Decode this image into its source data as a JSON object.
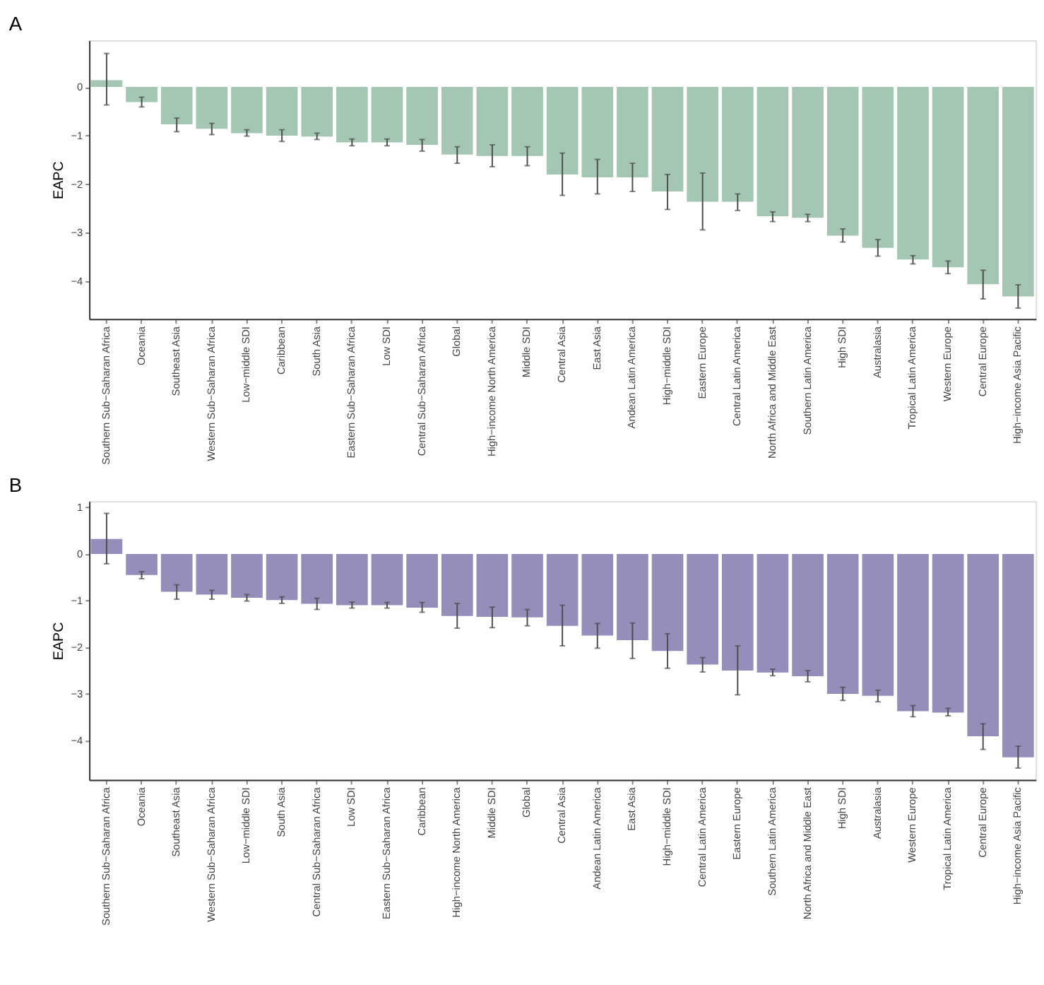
{
  "chart_data": [
    {
      "type": "bar",
      "title": "A",
      "ylabel": "EAPC",
      "categories": [
        "Southern Sub−Saharan Africa",
        "Oceania",
        "Southeast Asia",
        "Western Sub−Saharan Africa",
        "Low−middle SDI",
        "Caribbean",
        "South Asia",
        "Eastern Sub−Saharan Africa",
        "Low SDI",
        "Central Sub−Saharan Africa",
        "Global",
        "High−income North America",
        "Middle SDI",
        "Central Asia",
        "East Asia",
        "Andean Latin America",
        "High−middle SDI",
        "Eastern Europe",
        "Central Latin America",
        "North Africa and Middle East",
        "Southern Latin America",
        "High SDI",
        "Australasia",
        "Tropical Latin America",
        "Western Europe",
        "Central Europe",
        "High−income Asia Pacific"
      ],
      "values": [
        0.14,
        -0.31,
        -0.77,
        -0.86,
        -0.95,
        -1.0,
        -1.02,
        -1.14,
        -1.14,
        -1.19,
        -1.39,
        -1.42,
        -1.42,
        -1.8,
        -1.86,
        -1.86,
        -2.15,
        -2.36,
        -2.36,
        -2.66,
        -2.69,
        -3.06,
        -3.31,
        -3.55,
        -3.71,
        -4.06,
        -4.31
      ],
      "errors": [
        [
          -0.37,
          0.69
        ],
        [
          -0.41,
          -0.21
        ],
        [
          -0.92,
          -0.64
        ],
        [
          -0.98,
          -0.75
        ],
        [
          -1.01,
          -0.88
        ],
        [
          -1.12,
          -0.88
        ],
        [
          -1.08,
          -0.95
        ],
        [
          -1.21,
          -1.07
        ],
        [
          -1.21,
          -1.07
        ],
        [
          -1.32,
          -1.08
        ],
        [
          -1.57,
          -1.23
        ],
        [
          -1.64,
          -1.19
        ],
        [
          -1.62,
          -1.23
        ],
        [
          -2.23,
          -1.36
        ],
        [
          -2.2,
          -1.49
        ],
        [
          -2.15,
          -1.57
        ],
        [
          -2.52,
          -1.8
        ],
        [
          -2.94,
          -1.77
        ],
        [
          -2.54,
          -2.2
        ],
        [
          -2.77,
          -2.57
        ],
        [
          -2.77,
          -2.62
        ],
        [
          -3.19,
          -2.92
        ],
        [
          -3.48,
          -3.14
        ],
        [
          -3.64,
          -3.47
        ],
        [
          -3.84,
          -3.58
        ],
        [
          -4.36,
          -3.77
        ],
        [
          -4.55,
          -4.07
        ]
      ],
      "color": "#a4c7b3",
      "ylim": [
        -4.77,
        0.96
      ],
      "yticks": [
        -4,
        -3,
        -2,
        -1,
        0
      ],
      "grid": false
    },
    {
      "type": "bar",
      "title": "B",
      "ylabel": "EAPC",
      "categories": [
        "Southern Sub−Saharan Africa",
        "Oceania",
        "Southeast Asia",
        "Western Sub−Saharan Africa",
        "Low−middle SDI",
        "South Asia",
        "Central Sub−Saharan Africa",
        "Low SDI",
        "Eastern Sub−Saharan Africa",
        "Caribbean",
        "High−income North America",
        "Middle SDI",
        "Global",
        "Central Asia",
        "Andean Latin America",
        "East Asia",
        "High−middle SDI",
        "Central Latin America",
        "Eastern Europe",
        "Southern Latin America",
        "North Africa and Middle East",
        "High SDI",
        "Australasia",
        "Western Europe",
        "Tropical Latin America",
        "Central Europe",
        "High−income Asia Pacific"
      ],
      "values": [
        0.32,
        -0.45,
        -0.81,
        -0.87,
        -0.94,
        -0.99,
        -1.07,
        -1.1,
        -1.1,
        -1.15,
        -1.33,
        -1.35,
        -1.36,
        -1.54,
        -1.75,
        -1.85,
        -2.08,
        -2.37,
        -2.5,
        -2.54,
        -2.62,
        -3.0,
        -3.04,
        -3.37,
        -3.4,
        -3.91,
        -4.36
      ],
      "errors": [
        [
          -0.21,
          0.87
        ],
        [
          -0.53,
          -0.38
        ],
        [
          -0.97,
          -0.66
        ],
        [
          -0.97,
          -0.78
        ],
        [
          -1.01,
          -0.87
        ],
        [
          -1.06,
          -0.92
        ],
        [
          -1.19,
          -0.95
        ],
        [
          -1.16,
          -1.03
        ],
        [
          -1.16,
          -1.04
        ],
        [
          -1.25,
          -1.04
        ],
        [
          -1.59,
          -1.06
        ],
        [
          -1.58,
          -1.14
        ],
        [
          -1.54,
          -1.19
        ],
        [
          -1.97,
          -1.1
        ],
        [
          -2.02,
          -1.49
        ],
        [
          -2.24,
          -1.48
        ],
        [
          -2.45,
          -1.71
        ],
        [
          -2.53,
          -2.22
        ],
        [
          -3.02,
          -1.97
        ],
        [
          -2.61,
          -2.47
        ],
        [
          -2.74,
          -2.5
        ],
        [
          -3.14,
          -2.86
        ],
        [
          -3.17,
          -2.92
        ],
        [
          -3.49,
          -3.25
        ],
        [
          -3.47,
          -3.31
        ],
        [
          -4.19,
          -3.64
        ],
        [
          -4.59,
          -4.12
        ]
      ],
      "color": "#958dba",
      "ylim": [
        -4.84,
        1.13
      ],
      "yticks": [
        -4,
        -3,
        -2,
        -1,
        0,
        1
      ],
      "grid": false
    }
  ]
}
